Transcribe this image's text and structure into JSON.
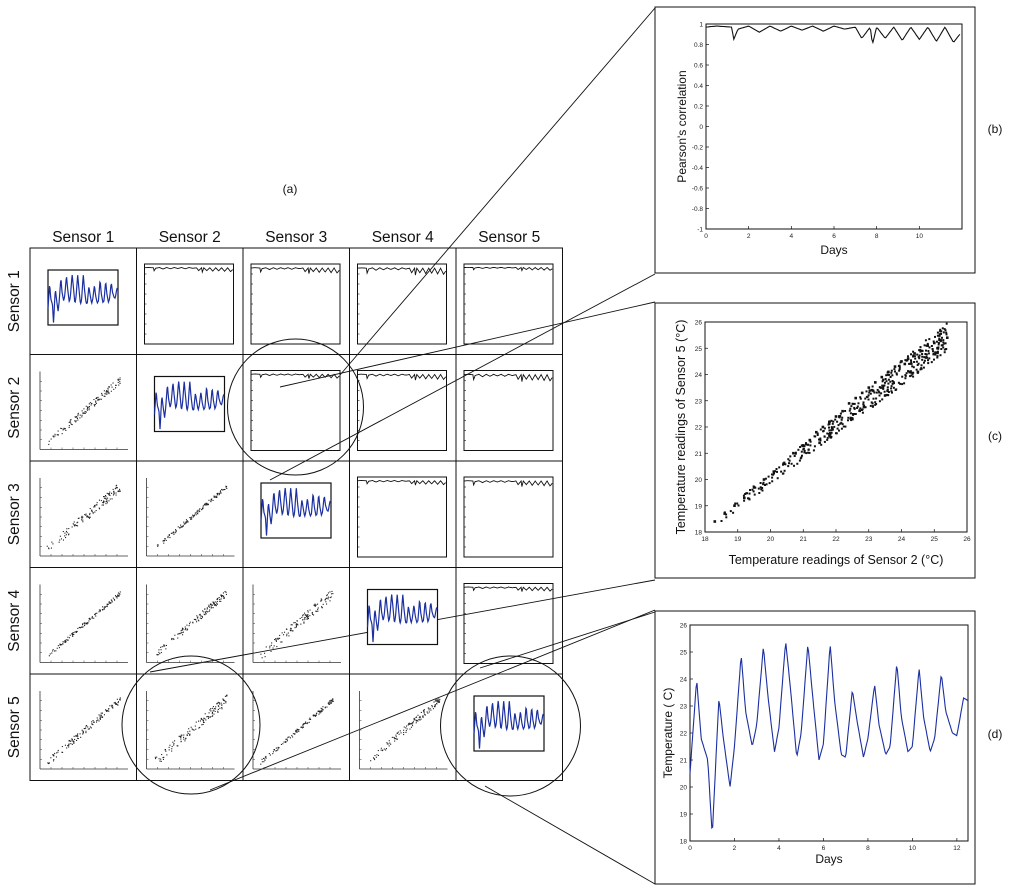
{
  "panel_labels": {
    "a": "(a)",
    "b": "(b)",
    "c": "(c)",
    "d": "(d)"
  },
  "matrix": {
    "column_headers": [
      "Sensor 1",
      "Sensor 2",
      "Sensor 3",
      "Sensor 4",
      "Sensor 5"
    ],
    "row_headers": [
      "Sensor 1",
      "Sensor 2",
      "Sensor 3",
      "Sensor 4",
      "Sensor 5"
    ]
  },
  "chart_data": [
    {
      "type": "line",
      "panel": "(b)",
      "title": "",
      "xlabel": "Days",
      "ylabel": "Pearson's correlation",
      "xlim": [
        0,
        12
      ],
      "ylim": [
        -1,
        1
      ],
      "x_ticks": [
        "0",
        "2",
        "4",
        "6",
        "8",
        "10"
      ],
      "y_ticks": [
        "-1",
        "-0.8",
        "-0.6",
        "-0.4",
        "-0.2",
        "0",
        "0.2",
        "0.4",
        "0.6",
        "0.8",
        "1"
      ],
      "series": [
        {
          "x": [
            0,
            0.5,
            1.2,
            1.3,
            1.5,
            2.0,
            2.5,
            3.0,
            3.5,
            4.0,
            4.5,
            5.0,
            5.5,
            6.0,
            6.5,
            7.0,
            7.3,
            7.7,
            7.8,
            8.0,
            8.4,
            8.8,
            9.2,
            9.6,
            10.0,
            10.4,
            10.8,
            11.2,
            11.6,
            11.9
          ],
          "y": [
            0.97,
            0.98,
            0.97,
            0.85,
            0.95,
            0.98,
            0.92,
            0.98,
            0.93,
            0.98,
            0.94,
            0.98,
            0.93,
            0.98,
            0.95,
            0.97,
            0.86,
            0.97,
            0.8,
            0.97,
            0.86,
            0.97,
            0.84,
            0.97,
            0.85,
            0.97,
            0.83,
            0.97,
            0.82,
            0.9
          ]
        }
      ]
    },
    {
      "type": "scatter",
      "panel": "(c)",
      "title": "",
      "xlabel": "Temperature readings of Sensor 2 (°C)",
      "ylabel": "Temperature readings of Sensor 5 (°C)",
      "xlim": [
        18,
        26
      ],
      "ylim": [
        18,
        26
      ],
      "x_ticks": [
        "18",
        "19",
        "20",
        "21",
        "22",
        "23",
        "24",
        "25",
        "26"
      ],
      "y_ticks": [
        "18",
        "19",
        "20",
        "21",
        "22",
        "23",
        "24",
        "25",
        "26"
      ],
      "series": [
        {
          "x": [
            18.3,
            18.6,
            18.9,
            19.2,
            19.5,
            19.8,
            20.1,
            20.4,
            20.7,
            21.0,
            21.2,
            21.4,
            21.6,
            21.8,
            22.0,
            22.2,
            22.4,
            22.6,
            22.8,
            23.0,
            23.2,
            23.4,
            23.6,
            23.8,
            24.0,
            24.2,
            24.4,
            24.6,
            24.8,
            25.0,
            25.2,
            25.4,
            21.5,
            22.5,
            23.5,
            24.5,
            22.1,
            23.1,
            24.1,
            25.1
          ],
          "y": [
            18.4,
            18.7,
            19.0,
            19.3,
            19.7,
            20.0,
            20.3,
            20.6,
            21.0,
            21.3,
            21.5,
            21.8,
            22.0,
            22.2,
            22.4,
            22.6,
            22.9,
            23.1,
            23.3,
            23.5,
            23.7,
            23.9,
            24.1,
            24.3,
            24.5,
            24.6,
            24.8,
            24.9,
            25.1,
            25.2,
            25.3,
            25.4,
            21.4,
            22.3,
            23.2,
            24.1,
            22.4,
            23.4,
            24.4,
            25.0
          ]
        }
      ]
    },
    {
      "type": "line",
      "panel": "(d)",
      "title": "",
      "xlabel": "Days",
      "ylabel": "Temperature ( C)",
      "xlim": [
        0,
        12.5
      ],
      "ylim": [
        18,
        26
      ],
      "x_ticks": [
        "0",
        "2",
        "4",
        "6",
        "8",
        "10",
        "12"
      ],
      "y_ticks": [
        "18",
        "19",
        "20",
        "21",
        "22",
        "23",
        "24",
        "25",
        "26"
      ],
      "series": [
        {
          "x": [
            0,
            0.3,
            0.5,
            0.8,
            1.0,
            1.3,
            1.5,
            1.8,
            2.0,
            2.3,
            2.5,
            2.8,
            3.0,
            3.3,
            3.5,
            3.8,
            4.0,
            4.3,
            4.5,
            4.8,
            5.0,
            5.3,
            5.5,
            5.8,
            6.0,
            6.3,
            6.5,
            6.8,
            7.0,
            7.3,
            7.5,
            7.8,
            8.0,
            8.3,
            8.5,
            8.8,
            9.0,
            9.3,
            9.5,
            9.8,
            10.0,
            10.3,
            10.5,
            10.8,
            11.0,
            11.3,
            11.5,
            11.8,
            12.0,
            12.3,
            12.5
          ],
          "y": [
            20.5,
            24.0,
            21.8,
            21.0,
            18.2,
            23.3,
            21.8,
            20.0,
            21.5,
            24.9,
            22.8,
            21.5,
            22.3,
            25.2,
            23.4,
            21.3,
            22.2,
            25.4,
            23.8,
            21.1,
            22.0,
            25.3,
            23.5,
            21.0,
            21.6,
            25.3,
            23.2,
            21.2,
            21.1,
            23.6,
            22.5,
            21.1,
            21.8,
            23.8,
            22.3,
            21.2,
            21.5,
            24.6,
            22.6,
            21.3,
            21.5,
            24.4,
            22.6,
            21.3,
            21.8,
            24.2,
            22.8,
            22.0,
            21.9,
            23.3,
            23.2
          ]
        }
      ]
    }
  ]
}
